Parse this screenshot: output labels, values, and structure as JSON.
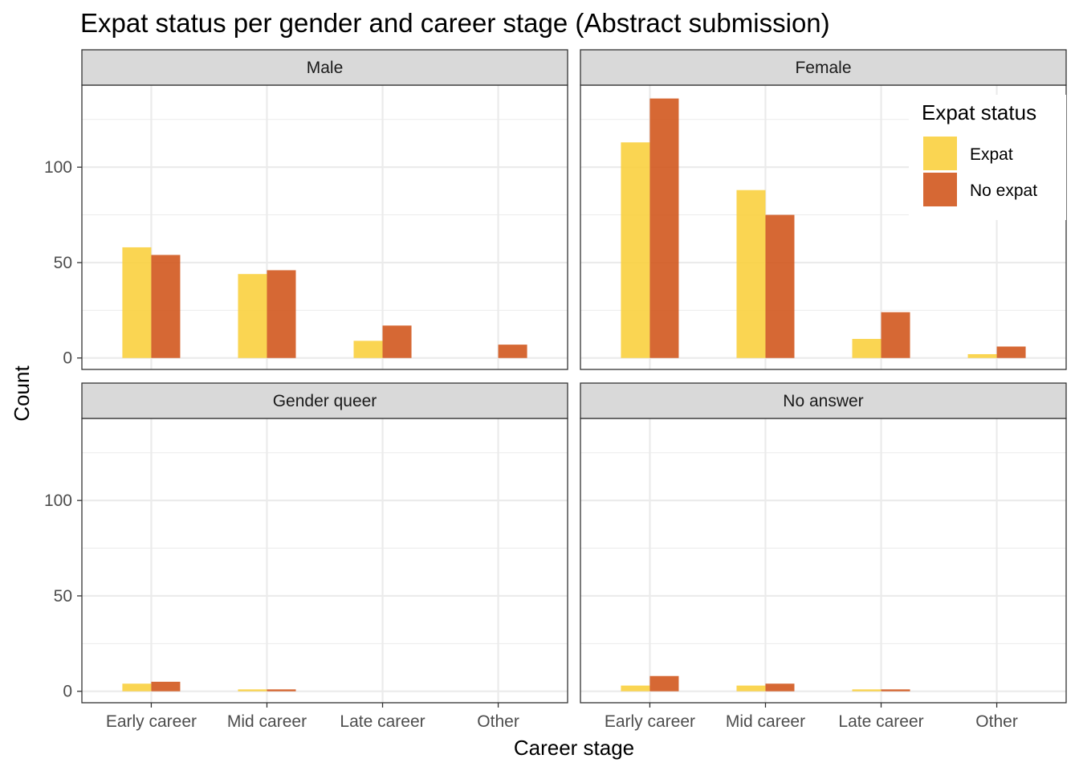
{
  "chart_data": {
    "type": "bar",
    "title": "Expat status per gender and career stage (Abstract submission)",
    "xlabel": "Career stage",
    "ylabel": "Count",
    "categories": [
      "Early career",
      "Mid career",
      "Late career",
      "Other"
    ],
    "ylim": [
      -6,
      143
    ],
    "yticks": [
      0,
      50,
      100
    ],
    "grid": true,
    "legend": {
      "title": "Expat status",
      "position": "top-right (inside Female panel)",
      "entries": [
        "Expat",
        "No expat"
      ]
    },
    "colors": {
      "Expat": "#F9D03F",
      "No expat": "#D2581E"
    },
    "panels": [
      {
        "name": "Male",
        "series": [
          {
            "name": "Expat",
            "values": [
              58,
              44,
              9,
              0
            ]
          },
          {
            "name": "No expat",
            "values": [
              54,
              46,
              17,
              7
            ]
          }
        ]
      },
      {
        "name": "Female",
        "series": [
          {
            "name": "Expat",
            "values": [
              113,
              88,
              10,
              2
            ]
          },
          {
            "name": "No expat",
            "values": [
              136,
              75,
              24,
              6
            ]
          }
        ]
      },
      {
        "name": "Gender queer",
        "series": [
          {
            "name": "Expat",
            "values": [
              4,
              1,
              0,
              0
            ]
          },
          {
            "name": "No expat",
            "values": [
              5,
              1,
              0,
              0
            ]
          }
        ]
      },
      {
        "name": "No answer",
        "series": [
          {
            "name": "Expat",
            "values": [
              3,
              3,
              1,
              0
            ]
          },
          {
            "name": "No expat",
            "values": [
              8,
              4,
              1,
              0
            ]
          }
        ]
      }
    ]
  }
}
